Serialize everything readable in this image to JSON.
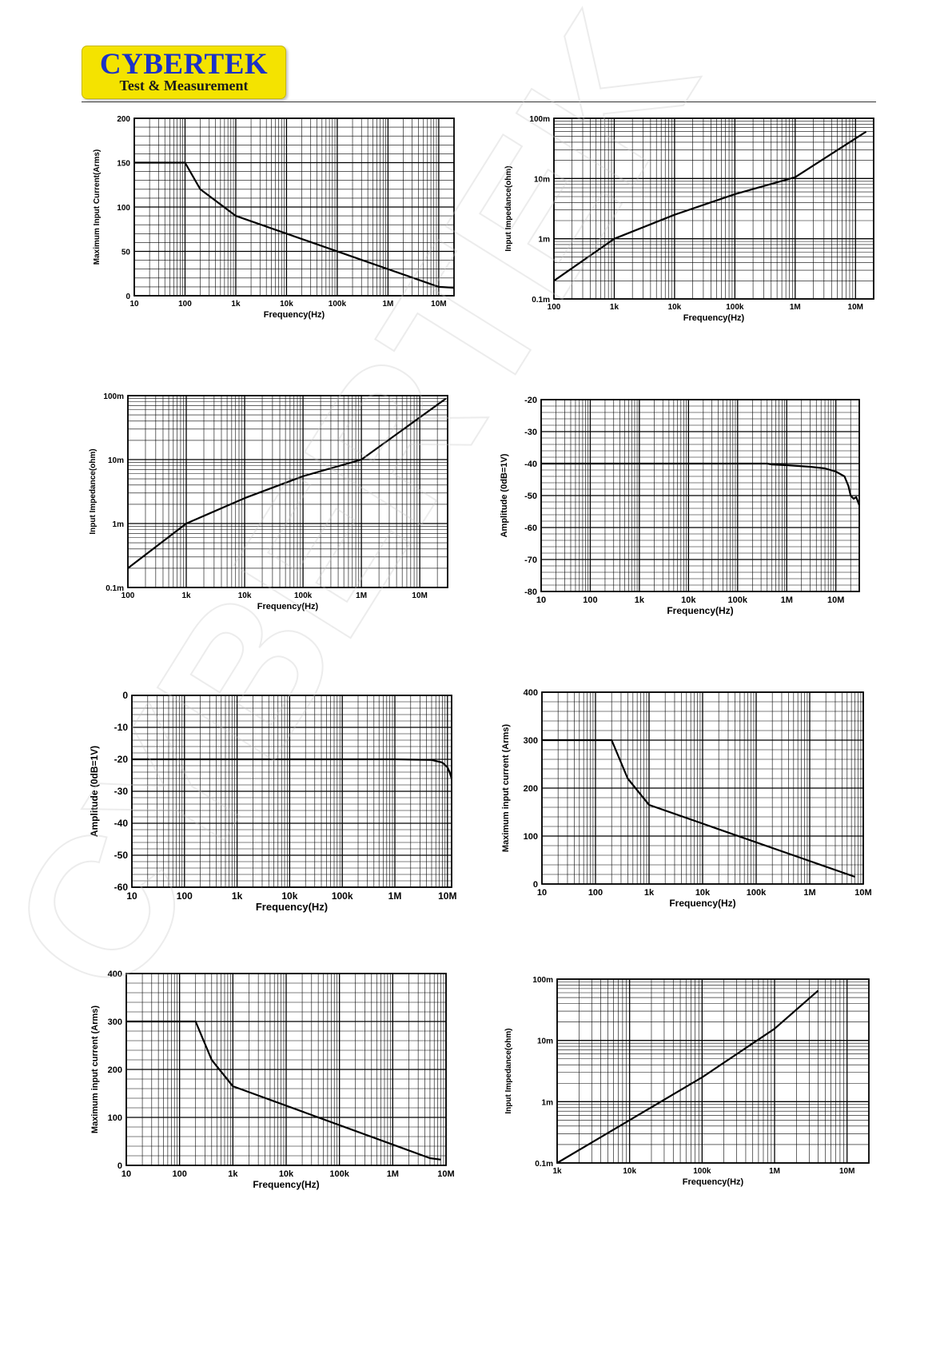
{
  "header": {
    "brand": "CYBERTEK",
    "tagline": "Test & Measurement",
    "brand_color": "#1b31c8",
    "badge_color": "#f4e300"
  },
  "watermark": {
    "text": "CYBERTEK"
  },
  "chart_data": [
    {
      "type": "line",
      "xlabel": "Frequency(Hz)",
      "ylabel": "Maximum Input Current(Arms)",
      "xscale": "log",
      "yscale": "linear",
      "xlim": [
        10,
        20000000
      ],
      "ylim": [
        0,
        200
      ],
      "xticks": [
        {
          "v": 10,
          "t": "10"
        },
        {
          "v": 100,
          "t": "100"
        },
        {
          "v": 1000,
          "t": "1k"
        },
        {
          "v": 10000,
          "t": "10k"
        },
        {
          "v": 100000,
          "t": "100k"
        },
        {
          "v": 1000000,
          "t": "1M"
        },
        {
          "v": 10000000,
          "t": "10M"
        }
      ],
      "yticks": [
        {
          "v": 0,
          "t": "0"
        },
        {
          "v": 50,
          "t": "50"
        },
        {
          "v": 100,
          "t": "100"
        },
        {
          "v": 150,
          "t": "150"
        },
        {
          "v": 200,
          "t": "200"
        }
      ],
      "grid": true,
      "series": [
        {
          "x": [
            10,
            100,
            200,
            1000,
            10000000,
            20000000
          ],
          "y": [
            150,
            150,
            120,
            90,
            10,
            9
          ]
        }
      ]
    },
    {
      "type": "line",
      "xlabel": "Frequency(Hz)",
      "ylabel": "Input Impedance(ohm)",
      "xscale": "log",
      "yscale": "log",
      "xlim": [
        100,
        20000000
      ],
      "ylim": [
        0.0001,
        0.1
      ],
      "xticks": [
        {
          "v": 100,
          "t": "100"
        },
        {
          "v": 1000,
          "t": "1k"
        },
        {
          "v": 10000,
          "t": "10k"
        },
        {
          "v": 100000,
          "t": "100k"
        },
        {
          "v": 1000000,
          "t": "1M"
        },
        {
          "v": 10000000,
          "t": "10M"
        }
      ],
      "yticks": [
        {
          "v": 0.0001,
          "t": "0.1m"
        },
        {
          "v": 0.001,
          "t": "1m"
        },
        {
          "v": 0.01,
          "t": "10m"
        },
        {
          "v": 0.1,
          "t": "100m"
        }
      ],
      "grid": true,
      "series": [
        {
          "x": [
            100,
            1000,
            10000,
            100000,
            1000000,
            15000000
          ],
          "y": [
            0.0002,
            0.001,
            0.0025,
            0.0055,
            0.0105,
            0.06
          ]
        }
      ]
    },
    {
      "type": "line",
      "xlabel": "Frequency(Hz)",
      "ylabel": "Input Impedance(ohm)",
      "xscale": "log",
      "yscale": "log",
      "xlim": [
        100,
        30000000
      ],
      "ylim": [
        0.0001,
        0.1
      ],
      "xticks": [
        {
          "v": 100,
          "t": "100"
        },
        {
          "v": 1000,
          "t": "1k"
        },
        {
          "v": 10000,
          "t": "10k"
        },
        {
          "v": 100000,
          "t": "100k"
        },
        {
          "v": 1000000,
          "t": "1M"
        },
        {
          "v": 10000000,
          "t": "10M"
        }
      ],
      "yticks": [
        {
          "v": 0.0001,
          "t": "0.1m"
        },
        {
          "v": 0.001,
          "t": "1m"
        },
        {
          "v": 0.01,
          "t": "10m"
        },
        {
          "v": 0.1,
          "t": "100m"
        }
      ],
      "grid": true,
      "series": [
        {
          "x": [
            100,
            1000,
            10000,
            100000,
            1000000,
            28000000
          ],
          "y": [
            0.0002,
            0.001,
            0.0025,
            0.0055,
            0.01,
            0.09
          ]
        }
      ]
    },
    {
      "type": "line",
      "xlabel": "Frequency(Hz)",
      "ylabel": "Amplitude (0dB=1V)",
      "xscale": "log",
      "yscale": "linear",
      "xlim": [
        10,
        30000000
      ],
      "ylim": [
        -80,
        -20
      ],
      "xticks": [
        {
          "v": 10,
          "t": "10"
        },
        {
          "v": 100,
          "t": "100"
        },
        {
          "v": 1000,
          "t": "1k"
        },
        {
          "v": 10000,
          "t": "10k"
        },
        {
          "v": 100000,
          "t": "100k"
        },
        {
          "v": 1000000,
          "t": "1M"
        },
        {
          "v": 10000000,
          "t": "10M"
        }
      ],
      "yticks": [
        {
          "v": -20,
          "t": "-20"
        },
        {
          "v": -30,
          "t": "-30"
        },
        {
          "v": -40,
          "t": "-40"
        },
        {
          "v": -50,
          "t": "-50"
        },
        {
          "v": -60,
          "t": "-60"
        },
        {
          "v": -70,
          "t": "-70"
        },
        {
          "v": -80,
          "t": "-80"
        }
      ],
      "grid": true,
      "series": [
        {
          "x": [
            10,
            400000,
            500000,
            1000000,
            3000000,
            6000000,
            10000000,
            15000000,
            18000000,
            20000000,
            23000000,
            26000000,
            30000000
          ],
          "y": [
            -40,
            -40,
            -40.3,
            -40.5,
            -41,
            -41.5,
            -42.5,
            -44,
            -47,
            -50,
            -51,
            -50.5,
            -53
          ]
        }
      ]
    },
    {
      "type": "line",
      "xlabel": "Frequency(Hz)",
      "ylabel": "Amplitude (0dB=1V)",
      "xscale": "log",
      "yscale": "linear",
      "xlim": [
        10,
        12000000
      ],
      "ylim": [
        -60,
        0
      ],
      "xticks": [
        {
          "v": 10,
          "t": "10"
        },
        {
          "v": 100,
          "t": "100"
        },
        {
          "v": 1000,
          "t": "1k"
        },
        {
          "v": 10000,
          "t": "10k"
        },
        {
          "v": 100000,
          "t": "100k"
        },
        {
          "v": 1000000,
          "t": "1M"
        },
        {
          "v": 10000000,
          "t": "10M"
        }
      ],
      "yticks": [
        {
          "v": 0,
          "t": "0"
        },
        {
          "v": -10,
          "t": "-10"
        },
        {
          "v": -20,
          "t": "-20"
        },
        {
          "v": -30,
          "t": "-30"
        },
        {
          "v": -40,
          "t": "-40"
        },
        {
          "v": -50,
          "t": "-50"
        },
        {
          "v": -60,
          "t": "-60"
        }
      ],
      "grid": true,
      "series": [
        {
          "x": [
            10,
            1000000,
            5000000,
            8000000,
            10000000,
            11000000,
            12000000
          ],
          "y": [
            -20,
            -20,
            -20.2,
            -21,
            -22.5,
            -24,
            -26
          ]
        }
      ]
    },
    {
      "type": "line",
      "xlabel": "Frequency(Hz)",
      "ylabel": "Maximum input current (Arms)",
      "xscale": "log",
      "yscale": "linear",
      "xlim": [
        10,
        10000000
      ],
      "ylim": [
        0,
        400
      ],
      "xticks": [
        {
          "v": 10,
          "t": "10"
        },
        {
          "v": 100,
          "t": "100"
        },
        {
          "v": 1000,
          "t": "1k"
        },
        {
          "v": 10000,
          "t": "10k"
        },
        {
          "v": 100000,
          "t": "100k"
        },
        {
          "v": 1000000,
          "t": "1M"
        },
        {
          "v": 10000000,
          "t": "10M"
        }
      ],
      "yticks": [
        {
          "v": 0,
          "t": "0"
        },
        {
          "v": 100,
          "t": "100"
        },
        {
          "v": 200,
          "t": "200"
        },
        {
          "v": 300,
          "t": "300"
        },
        {
          "v": 400,
          "t": "400"
        }
      ],
      "grid": true,
      "series": [
        {
          "x": [
            10,
            200,
            400,
            1000,
            7000000
          ],
          "y": [
            300,
            300,
            220,
            165,
            15
          ]
        }
      ]
    },
    {
      "type": "line",
      "xlabel": "Frequency(Hz)",
      "ylabel": "Maximum input current (Arms)",
      "xscale": "log",
      "yscale": "linear",
      "xlim": [
        10,
        10000000
      ],
      "ylim": [
        0,
        400
      ],
      "xticks": [
        {
          "v": 10,
          "t": "10"
        },
        {
          "v": 100,
          "t": "100"
        },
        {
          "v": 1000,
          "t": "1k"
        },
        {
          "v": 10000,
          "t": "10k"
        },
        {
          "v": 100000,
          "t": "100k"
        },
        {
          "v": 1000000,
          "t": "1M"
        },
        {
          "v": 10000000,
          "t": "10M"
        }
      ],
      "yticks": [
        {
          "v": 0,
          "t": "0"
        },
        {
          "v": 100,
          "t": "100"
        },
        {
          "v": 200,
          "t": "200"
        },
        {
          "v": 300,
          "t": "300"
        },
        {
          "v": 400,
          "t": "400"
        }
      ],
      "grid": true,
      "series": [
        {
          "x": [
            10,
            200,
            400,
            1000,
            5000000,
            8000000
          ],
          "y": [
            300,
            300,
            220,
            165,
            15,
            12
          ]
        }
      ]
    },
    {
      "type": "line",
      "xlabel": "Frequency(Hz)",
      "ylabel": "Input Impedance(ohm)",
      "xscale": "log",
      "yscale": "log",
      "xlim": [
        1000,
        20000000
      ],
      "ylim": [
        0.0001,
        0.1
      ],
      "xticks": [
        {
          "v": 1000,
          "t": "1k"
        },
        {
          "v": 10000,
          "t": "10k"
        },
        {
          "v": 100000,
          "t": "100k"
        },
        {
          "v": 1000000,
          "t": "1M"
        },
        {
          "v": 10000000,
          "t": "10M"
        }
      ],
      "yticks": [
        {
          "v": 0.0001,
          "t": "0.1m"
        },
        {
          "v": 0.001,
          "t": "1m"
        },
        {
          "v": 0.01,
          "t": "10m"
        },
        {
          "v": 0.1,
          "t": "100m"
        }
      ],
      "grid": true,
      "series": [
        {
          "x": [
            1000,
            10000,
            100000,
            1000000,
            4000000
          ],
          "y": [
            0.0001,
            0.0005,
            0.0025,
            0.0155,
            0.065
          ]
        }
      ]
    }
  ]
}
